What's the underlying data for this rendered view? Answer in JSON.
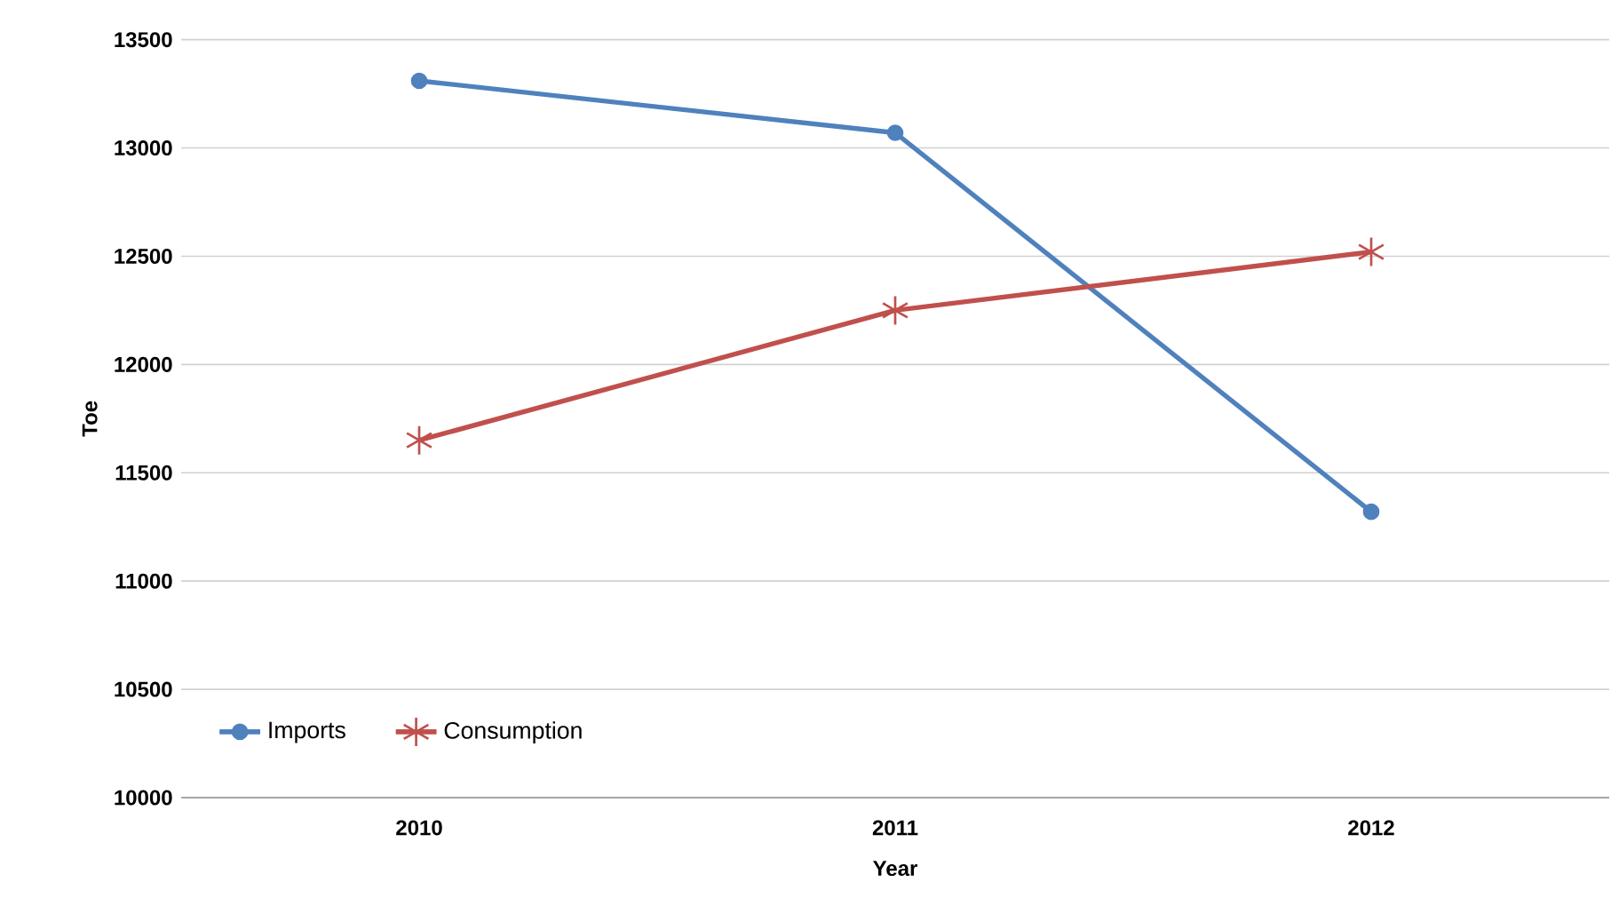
{
  "chart_data": {
    "type": "line",
    "xlabel": "Year",
    "ylabel": "Toe",
    "categories": [
      "2010",
      "2011",
      "2012"
    ],
    "series": [
      {
        "name": "Imports",
        "color": "#4f81bd",
        "values": [
          13310,
          13070,
          11320
        ],
        "marker": "circle"
      },
      {
        "name": "Consumption",
        "color": "#c0504d",
        "values": [
          11650,
          12250,
          12520
        ],
        "marker": "cross"
      }
    ],
    "ylim": [
      10000,
      13500
    ],
    "yticks": [
      10000,
      10500,
      11000,
      11500,
      12000,
      12500,
      13000,
      13500
    ],
    "grid": "y",
    "legend": "bottom left",
    "line_style": "solid"
  }
}
